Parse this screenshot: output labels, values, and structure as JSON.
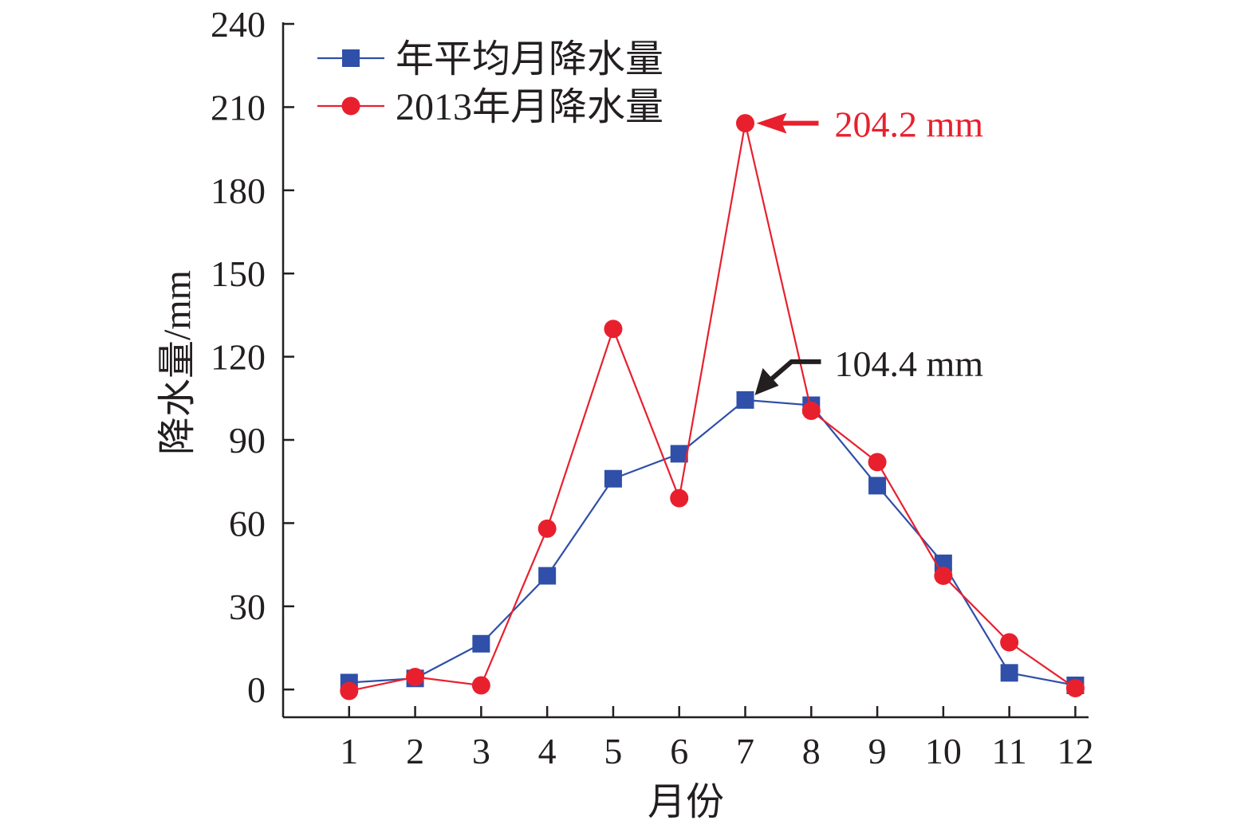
{
  "chart_data": {
    "type": "line",
    "title": "",
    "xlabel": "月份",
    "ylabel": "降水量/mm",
    "x": [
      1,
      2,
      3,
      4,
      5,
      6,
      7,
      8,
      9,
      10,
      11,
      12
    ],
    "x_tick_labels": [
      "1",
      "2",
      "3",
      "4",
      "5",
      "6",
      "7",
      "8",
      "9",
      "10",
      "11",
      "12"
    ],
    "xlim": [
      0,
      12.2
    ],
    "ylim": [
      -10,
      240
    ],
    "y_ticks": [
      0,
      30,
      60,
      90,
      120,
      150,
      180,
      210,
      240
    ],
    "y_tick_labels": [
      "0",
      "30",
      "60",
      "90",
      "120",
      "150",
      "180",
      "210",
      "240"
    ],
    "grid": false,
    "legend_position": "top-left",
    "series": [
      {
        "name": "年平均月降水量",
        "marker": "square",
        "color": "#2f4fa8",
        "values": [
          2.5,
          4,
          16.5,
          41,
          76,
          85,
          104.4,
          102.5,
          73.5,
          45.5,
          6,
          1.5
        ]
      },
      {
        "name": "2013年月降水量",
        "marker": "circle",
        "color": "#e8202e",
        "values": [
          -0.5,
          4.5,
          1.5,
          58,
          130,
          69,
          204.2,
          100.5,
          82,
          41,
          17,
          0.5
        ]
      }
    ],
    "annotations": [
      {
        "text": "204.2 mm",
        "x": 7,
        "y": 204.2,
        "color": "#e8202e"
      },
      {
        "text": "104.4 mm",
        "x": 7,
        "y": 104.4,
        "color": "#231f20"
      }
    ]
  }
}
